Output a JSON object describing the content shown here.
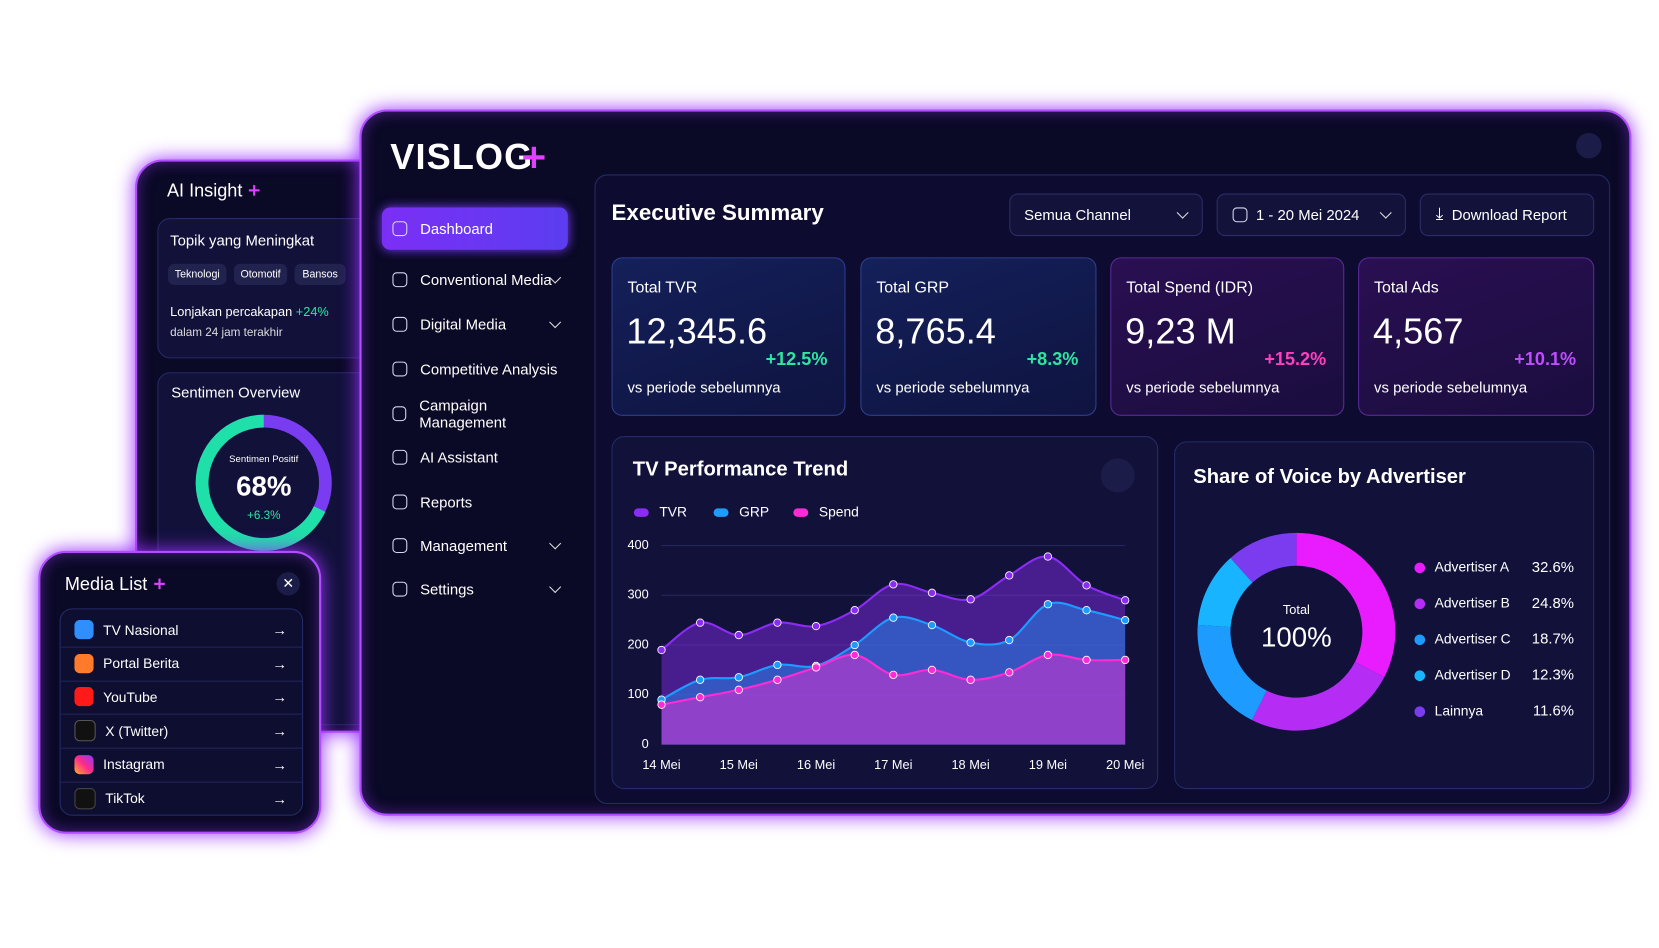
{
  "brand": "VISLOG",
  "nav": [
    {
      "label": "Dashboard",
      "active": true
    },
    {
      "label": "Conventional Media",
      "expandable": true
    },
    {
      "label": "Digital Media",
      "expandable": true
    },
    {
      "label": "Competitive Analysis"
    },
    {
      "label": "Campaign Management"
    },
    {
      "label": "AI Assistant"
    },
    {
      "label": "Reports"
    },
    {
      "label": "Management",
      "expandable": true
    },
    {
      "label": "Settings",
      "expandable": true
    }
  ],
  "header": {
    "title": "Executive Summary",
    "channel_filter": "Semua Channel",
    "date_filter": "1 - 20 Mei 2024",
    "download": "Download Report"
  },
  "kpis": [
    {
      "label": "Total TVR",
      "value": "12,345.6",
      "change": "+12.5%",
      "note": "vs periode sebelumnya",
      "accent": "#2ee6a0"
    },
    {
      "label": "Total GRP",
      "value": "8,765.4",
      "change": "+8.3%",
      "note": "vs periode sebelumnya",
      "accent": "#2ee6a0"
    },
    {
      "label": "Total Spend (IDR)",
      "value": "9,23 M",
      "change": "+15.2%",
      "note": "vs periode sebelumnya",
      "accent": "#ff3fbf"
    },
    {
      "label": "Total Ads",
      "value": "4,567",
      "change": "+10.1%",
      "note": "vs periode sebelumnya",
      "accent": "#c04cff"
    }
  ],
  "trend_chart": {
    "type": "area",
    "title": "TV Performance Trend",
    "categories": [
      "14 Mei",
      null,
      "15 Mei",
      null,
      "16 Mei",
      null,
      "17 Mei",
      null,
      "18 Mei",
      null,
      "19 Mei",
      null,
      "20 Mei"
    ],
    "series": [
      {
        "name": "TVR",
        "color": "#8b2cf5",
        "values": [
          190,
          245,
          220,
          245,
          238,
          270,
          322,
          305,
          292,
          340,
          378,
          320,
          290
        ]
      },
      {
        "name": "GRP",
        "color": "#1e9bff",
        "values": [
          90,
          130,
          135,
          160,
          158,
          200,
          255,
          240,
          205,
          210,
          282,
          270,
          250
        ]
      },
      {
        "name": "Spend",
        "color": "#ff2bd6",
        "values": [
          80,
          95,
          110,
          130,
          155,
          180,
          140,
          150,
          130,
          145,
          180,
          170,
          170
        ]
      }
    ],
    "ylim": [
      0,
      400
    ],
    "yticks": [
      0,
      100,
      200,
      300,
      400
    ]
  },
  "share_chart": {
    "type": "donut",
    "title": "Share of Voice by Advertiser",
    "center_label": "Total",
    "center_value": "100%",
    "categories": [
      "Advertiser A",
      "Advertiser B",
      "Advertiser C",
      "Advertiser D",
      "Lainnya"
    ],
    "values": [
      32.6,
      24.8,
      18.7,
      12.3,
      11.6
    ],
    "value_labels": [
      "32.6%",
      "24.8%",
      "18.7%",
      "12.3%",
      "11.6%"
    ],
    "colors": [
      "#e81cff",
      "#b52cf5",
      "#1e9bff",
      "#19b4ff",
      "#7b3cf0"
    ]
  },
  "ai_insight": {
    "title": "AI Insight",
    "topic_card": {
      "title": "Topik yang Meningkat",
      "tags": [
        "Teknologi",
        "Otomotif",
        "Bansos"
      ],
      "text": "Lonjakan percakapan",
      "highlight": "+24%",
      "subtext": "dalam 24 jam terakhir"
    },
    "sentiment": {
      "title": "Sentimen Overview",
      "label": "Sentimen Positif",
      "value": 68,
      "value_label": "68%",
      "change": "+6.3%"
    }
  },
  "media_list": {
    "title": "Media List",
    "items": [
      "TV Nasional",
      "Portal Berita",
      "YouTube",
      "X (Twitter)",
      "Instagram",
      "TikTok"
    ]
  }
}
